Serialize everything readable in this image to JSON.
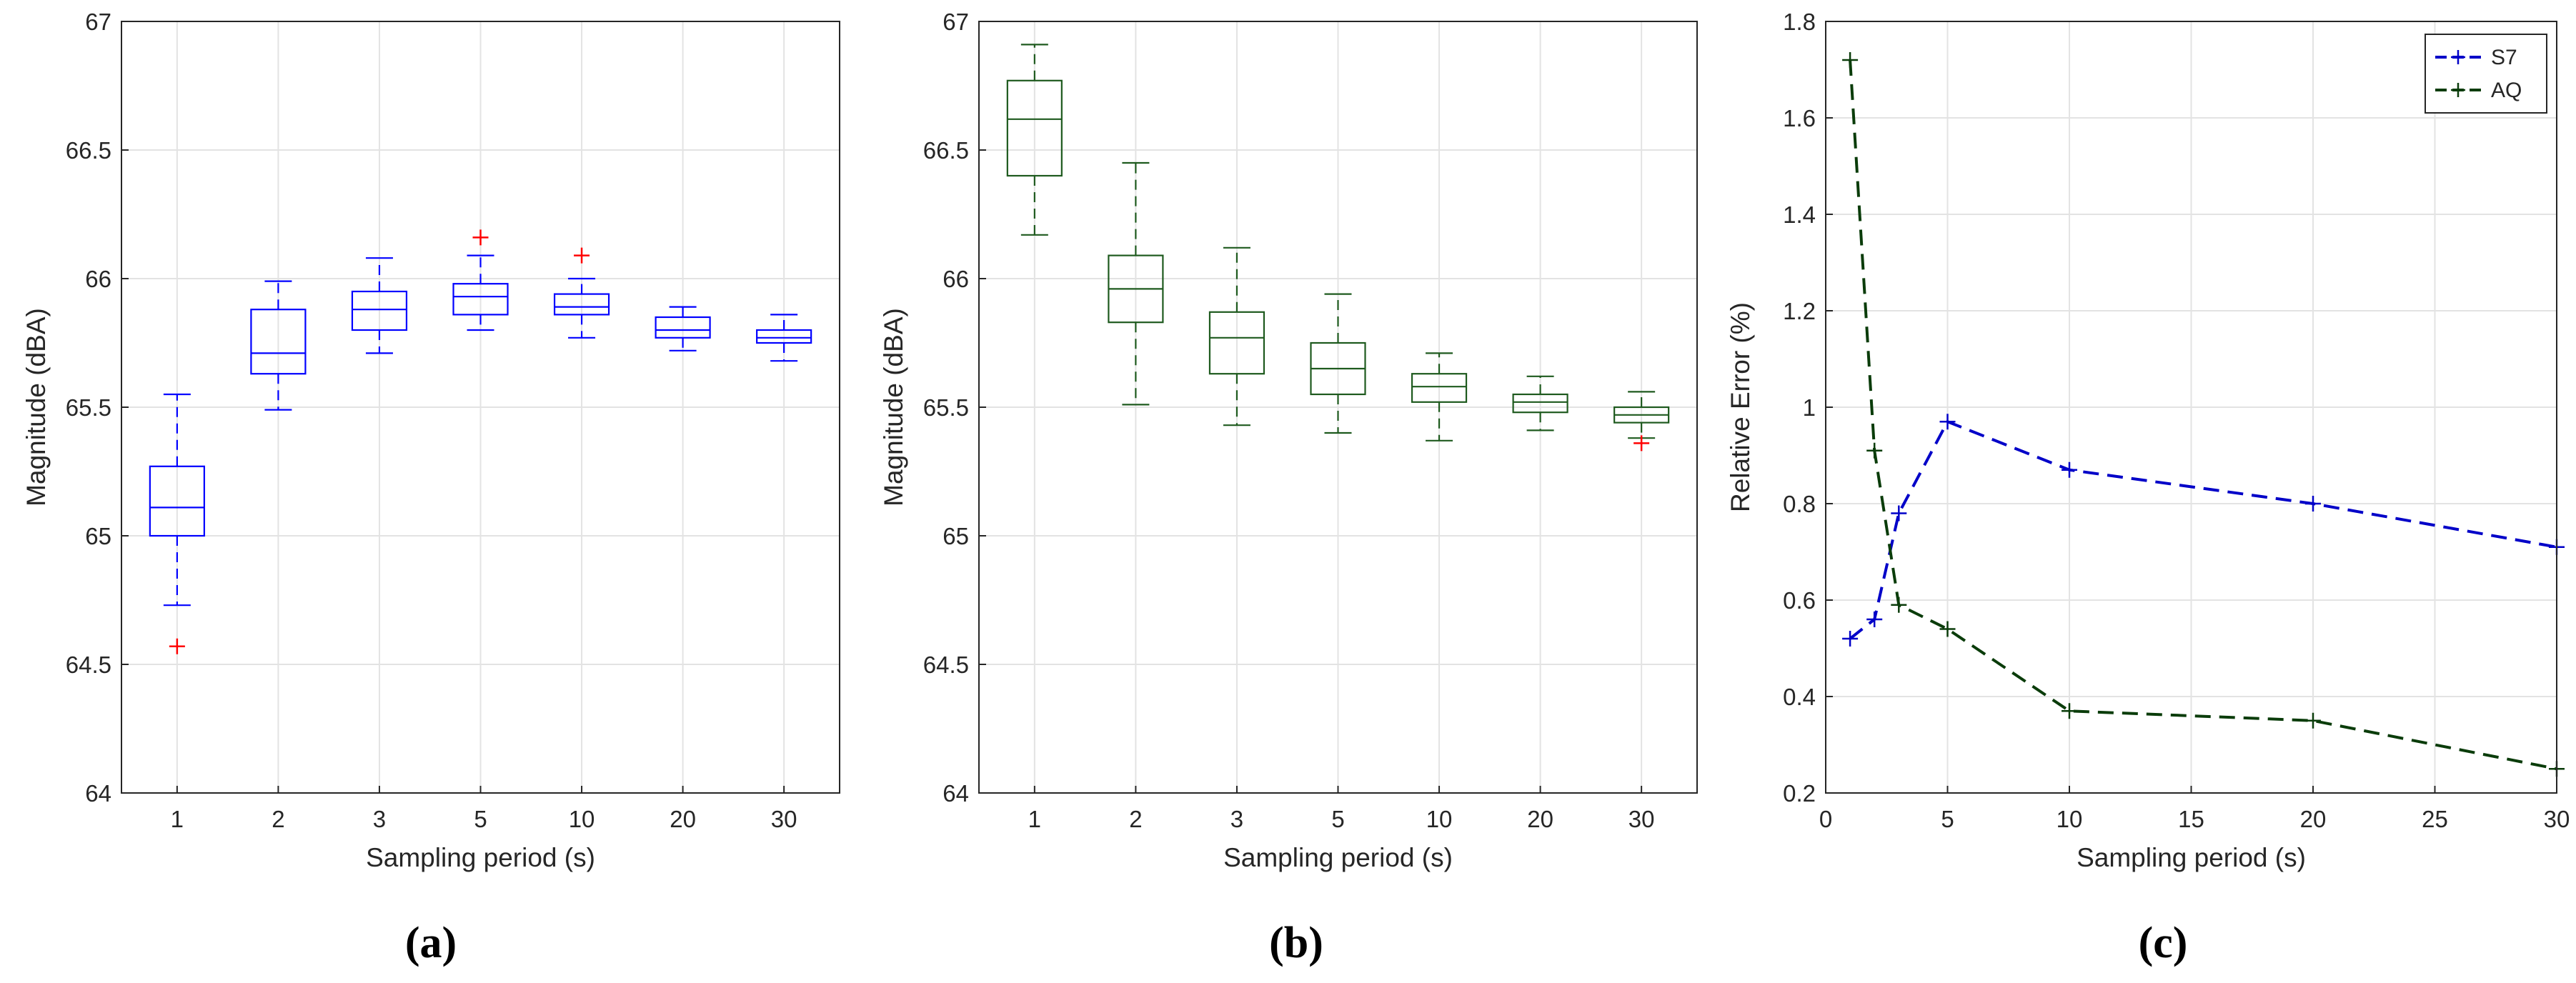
{
  "chart_data": [
    {
      "type": "boxplot",
      "panel": "(a)",
      "xlabel": "Sampling period (s)",
      "ylabel": "Magnitude (dBA)",
      "ylim": [
        64,
        67
      ],
      "yticks": [
        64,
        64.5,
        65,
        65.5,
        66,
        66.5,
        67
      ],
      "ytick_labels": [
        "64",
        "64.5",
        "65",
        "65.5",
        "66",
        "66.5",
        "67"
      ],
      "categories": [
        "1",
        "2",
        "3",
        "5",
        "10",
        "20",
        "30"
      ],
      "color": "#0000ff",
      "outlier_color": "#ff0000",
      "grid": true,
      "boxes": [
        {
          "whisker_low": 64.73,
          "q1": 65.0,
          "median": 65.11,
          "q3": 65.27,
          "whisker_high": 65.55,
          "outliers": [
            64.57
          ]
        },
        {
          "whisker_low": 65.49,
          "q1": 65.63,
          "median": 65.71,
          "q3": 65.88,
          "whisker_high": 65.99,
          "outliers": []
        },
        {
          "whisker_low": 65.71,
          "q1": 65.8,
          "median": 65.88,
          "q3": 65.95,
          "whisker_high": 66.08,
          "outliers": []
        },
        {
          "whisker_low": 65.8,
          "q1": 65.86,
          "median": 65.93,
          "q3": 65.98,
          "whisker_high": 66.09,
          "outliers": [
            66.16
          ]
        },
        {
          "whisker_low": 65.77,
          "q1": 65.86,
          "median": 65.89,
          "q3": 65.94,
          "whisker_high": 66.0,
          "outliers": [
            66.09
          ]
        },
        {
          "whisker_low": 65.72,
          "q1": 65.77,
          "median": 65.8,
          "q3": 65.85,
          "whisker_high": 65.89,
          "outliers": []
        },
        {
          "whisker_low": 65.68,
          "q1": 65.75,
          "median": 65.77,
          "q3": 65.8,
          "whisker_high": 65.86,
          "outliers": []
        }
      ]
    },
    {
      "type": "boxplot",
      "panel": "(b)",
      "xlabel": "Sampling period (s)",
      "ylabel": "Magnitude (dBA)",
      "ylim": [
        64,
        67
      ],
      "yticks": [
        64,
        64.5,
        65,
        65.5,
        66,
        66.5,
        67
      ],
      "ytick_labels": [
        "64",
        "64.5",
        "65",
        "65.5",
        "66",
        "66.5",
        "67"
      ],
      "categories": [
        "1",
        "2",
        "3",
        "5",
        "10",
        "20",
        "30"
      ],
      "color": "#1e5a1e",
      "outlier_color": "#ff0000",
      "grid": true,
      "boxes": [
        {
          "whisker_low": 66.17,
          "q1": 66.4,
          "median": 66.62,
          "q3": 66.77,
          "whisker_high": 66.91,
          "outliers": []
        },
        {
          "whisker_low": 65.51,
          "q1": 65.83,
          "median": 65.96,
          "q3": 66.09,
          "whisker_high": 66.45,
          "outliers": []
        },
        {
          "whisker_low": 65.43,
          "q1": 65.63,
          "median": 65.77,
          "q3": 65.87,
          "whisker_high": 66.12,
          "outliers": []
        },
        {
          "whisker_low": 65.4,
          "q1": 65.55,
          "median": 65.65,
          "q3": 65.75,
          "whisker_high": 65.94,
          "outliers": []
        },
        {
          "whisker_low": 65.37,
          "q1": 65.52,
          "median": 65.58,
          "q3": 65.63,
          "whisker_high": 65.71,
          "outliers": []
        },
        {
          "whisker_low": 65.41,
          "q1": 65.48,
          "median": 65.52,
          "q3": 65.55,
          "whisker_high": 65.62,
          "outliers": []
        },
        {
          "whisker_low": 65.38,
          "q1": 65.44,
          "median": 65.47,
          "q3": 65.5,
          "whisker_high": 65.56,
          "outliers": [
            65.36
          ]
        }
      ]
    },
    {
      "type": "line",
      "panel": "(c)",
      "xlabel": "Sampling period (s)",
      "ylabel": "Relative Error (%)",
      "xlim": [
        0,
        30
      ],
      "ylim": [
        0.2,
        1.8
      ],
      "xticks": [
        0,
        5,
        10,
        15,
        20,
        25,
        30
      ],
      "xtick_labels": [
        "0",
        "5",
        "10",
        "15",
        "20",
        "25",
        "30"
      ],
      "yticks": [
        0.2,
        0.4,
        0.6,
        0.8,
        1.0,
        1.2,
        1.4,
        1.6,
        1.8
      ],
      "ytick_labels": [
        "0.2",
        "0.4",
        "0.6",
        "0.8",
        "1",
        "1.2",
        "1.4",
        "1.6",
        "1.8"
      ],
      "grid": true,
      "legend_position": "top-right",
      "series": [
        {
          "name": "S7",
          "color": "#0000c8",
          "style": "dashed",
          "marker": "+",
          "x": [
            1,
            2,
            3,
            5,
            10,
            20,
            30
          ],
          "y": [
            0.52,
            0.56,
            0.78,
            0.97,
            0.87,
            0.8,
            0.71
          ]
        },
        {
          "name": "AQ",
          "color": "#0a3c0a",
          "style": "dashed",
          "marker": "+",
          "x": [
            1,
            2,
            3,
            5,
            10,
            20,
            30
          ],
          "y": [
            1.72,
            0.91,
            0.59,
            0.54,
            0.37,
            0.35,
            0.25
          ]
        }
      ]
    }
  ]
}
